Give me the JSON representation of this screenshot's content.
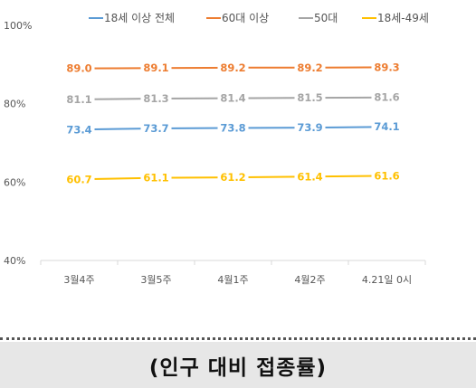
{
  "chart_data": {
    "type": "line",
    "categories": [
      "3월4주",
      "3월5주",
      "4월1주",
      "4월2주",
      "4.21일 0시"
    ],
    "yticks": [
      "40%",
      "60%",
      "80%",
      "100%"
    ],
    "ylim": [
      40,
      100
    ],
    "grid": false,
    "legend_position": "top",
    "series": [
      {
        "name": "18세 이상 전체",
        "color": "#5b9bd5",
        "values": [
          73.4,
          73.7,
          73.8,
          73.9,
          74.1
        ],
        "labels": [
          "73.4",
          "73.7",
          "73.8",
          "73.9",
          "74.1"
        ]
      },
      {
        "name": "60대 이상",
        "color": "#ed7d31",
        "values": [
          89.0,
          89.1,
          89.2,
          89.2,
          89.3
        ],
        "labels": [
          "89.0",
          "89.1",
          "89.2",
          "89.2",
          "89.3"
        ]
      },
      {
        "name": "50대",
        "color": "#a5a5a5",
        "values": [
          81.1,
          81.3,
          81.4,
          81.5,
          81.6
        ],
        "labels": [
          "81.1",
          "81.3",
          "81.4",
          "81.5",
          "81.6"
        ]
      },
      {
        "name": "18세-49세",
        "color": "#ffc000",
        "values": [
          60.7,
          61.1,
          61.2,
          61.4,
          61.6
        ],
        "labels": [
          "60.7",
          "61.1",
          "61.2",
          "61.4",
          "61.6"
        ]
      }
    ]
  },
  "caption": "(인구 대비 접종률)"
}
